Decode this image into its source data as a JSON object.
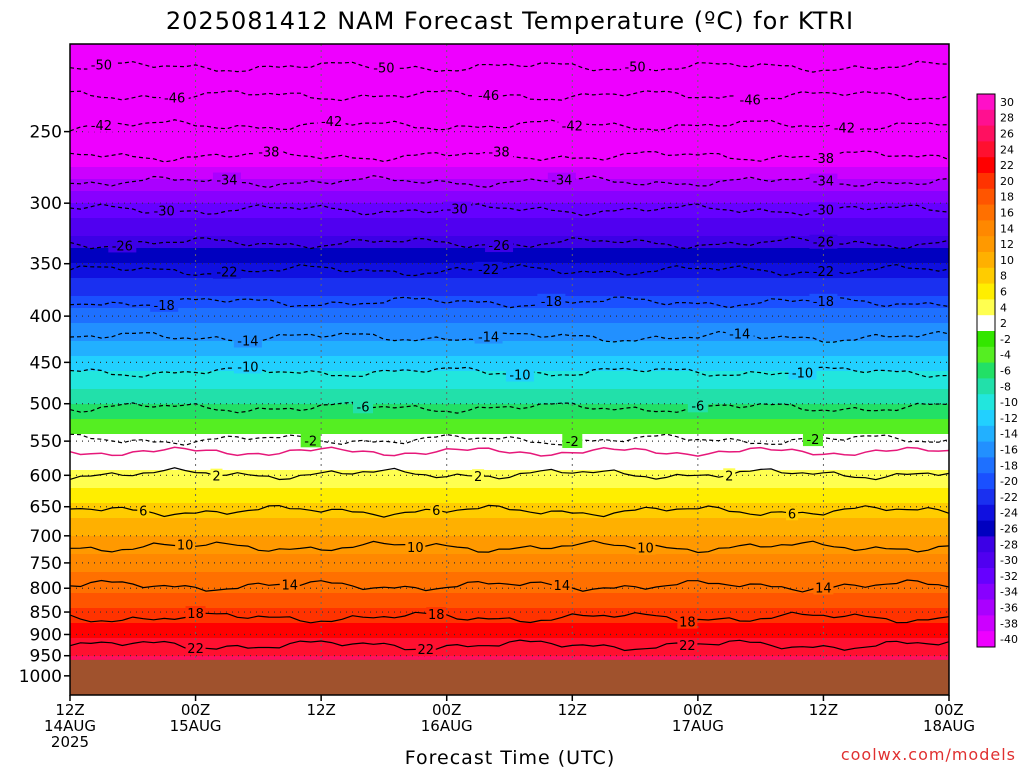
{
  "chart_data": {
    "type": "heatmap",
    "title": "2025081412 NAM Forecast Temperature (ºC) for KTRI",
    "xlabel": "Forecast Time (UTC)",
    "ylabel": "",
    "credit": "coolwx.com/models",
    "y_scale": "log-pressure",
    "y_ticks": [
      250,
      300,
      350,
      400,
      450,
      500,
      550,
      600,
      650,
      700,
      750,
      800,
      850,
      900,
      950,
      1000
    ],
    "ylim": [
      200,
      1050
    ],
    "x_ticks": [
      {
        "hour": 0,
        "l1": "12Z",
        "l2": "14AUG",
        "l3": "2025"
      },
      {
        "hour": 12,
        "l1": "00Z",
        "l2": "15AUG",
        "l3": ""
      },
      {
        "hour": 24,
        "l1": "12Z",
        "l2": "",
        "l3": ""
      },
      {
        "hour": 36,
        "l1": "00Z",
        "l2": "16AUG",
        "l3": ""
      },
      {
        "hour": 48,
        "l1": "12Z",
        "l2": "",
        "l3": ""
      },
      {
        "hour": 60,
        "l1": "00Z",
        "l2": "17AUG",
        "l3": ""
      },
      {
        "hour": 72,
        "l1": "12Z",
        "l2": "",
        "l3": ""
      },
      {
        "hour": 84,
        "l1": "00Z",
        "l2": "18AUG",
        "l3": ""
      }
    ],
    "xlim": [
      0,
      84
    ],
    "surface_pressure": 960,
    "freezing_level_pressure": 565,
    "profile": [
      {
        "p": 200,
        "t": -54
      },
      {
        "p": 250,
        "t": -43
      },
      {
        "p": 300,
        "t": -32
      },
      {
        "p": 350,
        "t": -24
      },
      {
        "p": 400,
        "t": -17
      },
      {
        "p": 450,
        "t": -11
      },
      {
        "p": 500,
        "t": -6
      },
      {
        "p": 550,
        "t": -1
      },
      {
        "p": 600,
        "t": 2.5
      },
      {
        "p": 650,
        "t": 6.5
      },
      {
        "p": 700,
        "t": 10
      },
      {
        "p": 750,
        "t": 13
      },
      {
        "p": 800,
        "t": 15.5
      },
      {
        "p": 850,
        "t": 18.5
      },
      {
        "p": 900,
        "t": 21.5
      },
      {
        "p": 950,
        "t": 24
      }
    ],
    "contours": [
      {
        "t": -50,
        "p": 212,
        "labels": [
          {
            "x": 3,
            "v": "-50"
          },
          {
            "x": 30,
            "v": "-50"
          },
          {
            "x": 54,
            "v": "-50"
          }
        ]
      },
      {
        "t": -46,
        "p": 228,
        "labels": [
          {
            "x": 10,
            "v": "-46"
          },
          {
            "x": 40,
            "v": "-46"
          },
          {
            "x": 65,
            "v": "-46"
          }
        ]
      },
      {
        "t": -42,
        "p": 246,
        "labels": [
          {
            "x": 3,
            "v": "-42"
          },
          {
            "x": 25,
            "v": "-42"
          },
          {
            "x": 48,
            "v": "-42"
          },
          {
            "x": 74,
            "v": "-42"
          }
        ]
      },
      {
        "t": -38,
        "p": 266,
        "labels": [
          {
            "x": 19,
            "v": "-38"
          },
          {
            "x": 41,
            "v": "-38"
          },
          {
            "x": 72,
            "v": "-38"
          }
        ]
      },
      {
        "t": -34,
        "p": 284,
        "labels": [
          {
            "x": 15,
            "v": "-34"
          },
          {
            "x": 47,
            "v": "-34"
          },
          {
            "x": 72,
            "v": "-34"
          }
        ]
      },
      {
        "t": -30,
        "p": 305,
        "labels": [
          {
            "x": 9,
            "v": "-30"
          },
          {
            "x": 37,
            "v": "-30"
          },
          {
            "x": 72,
            "v": "-30"
          }
        ]
      },
      {
        "t": -26,
        "p": 332,
        "labels": [
          {
            "x": 5,
            "v": "-26"
          },
          {
            "x": 41,
            "v": "-26"
          },
          {
            "x": 72,
            "v": "-26"
          }
        ]
      },
      {
        "t": -22,
        "p": 356,
        "labels": [
          {
            "x": 15,
            "v": "-22"
          },
          {
            "x": 40,
            "v": "-22"
          },
          {
            "x": 72,
            "v": "-22"
          }
        ]
      },
      {
        "t": -18,
        "p": 386,
        "labels": [
          {
            "x": 9,
            "v": "-18"
          },
          {
            "x": 46,
            "v": "-18"
          },
          {
            "x": 72,
            "v": "-18"
          }
        ]
      },
      {
        "t": -14,
        "p": 422,
        "labels": [
          {
            "x": 17,
            "v": "-14"
          },
          {
            "x": 40,
            "v": "-14"
          },
          {
            "x": 64,
            "v": "-14"
          }
        ]
      },
      {
        "t": -10,
        "p": 461,
        "labels": [
          {
            "x": 17,
            "v": "-10"
          },
          {
            "x": 43,
            "v": "-10"
          },
          {
            "x": 70,
            "v": "-10"
          }
        ]
      },
      {
        "t": -6,
        "p": 505,
        "labels": [
          {
            "x": 28,
            "v": "-6"
          },
          {
            "x": 60,
            "v": "-6"
          }
        ]
      },
      {
        "t": -2,
        "p": 548,
        "labels": [
          {
            "x": 23,
            "v": "-2"
          },
          {
            "x": 48,
            "v": "-2"
          },
          {
            "x": 71,
            "v": "-2"
          }
        ]
      },
      {
        "t": 2,
        "p": 598,
        "labels": [
          {
            "x": 14,
            "v": "2"
          },
          {
            "x": 39,
            "v": "2"
          },
          {
            "x": 63,
            "v": "2"
          }
        ]
      },
      {
        "t": 6,
        "p": 657,
        "labels": [
          {
            "x": 7,
            "v": "6"
          },
          {
            "x": 35,
            "v": "6"
          },
          {
            "x": 69,
            "v": "6"
          }
        ]
      },
      {
        "t": 10,
        "p": 720,
        "labels": [
          {
            "x": 11,
            "v": "10"
          },
          {
            "x": 33,
            "v": "10"
          },
          {
            "x": 55,
            "v": "10"
          }
        ]
      },
      {
        "t": 14,
        "p": 795,
        "labels": [
          {
            "x": 21,
            "v": "14"
          },
          {
            "x": 47,
            "v": "14"
          },
          {
            "x": 72,
            "v": "14"
          }
        ]
      },
      {
        "t": 18,
        "p": 862,
        "labels": [
          {
            "x": 12,
            "v": "18"
          },
          {
            "x": 35,
            "v": "18"
          },
          {
            "x": 59,
            "v": "18"
          }
        ]
      },
      {
        "t": 22,
        "p": 925,
        "labels": [
          {
            "x": 12,
            "v": "22"
          },
          {
            "x": 34,
            "v": "22"
          },
          {
            "x": 59,
            "v": "22"
          }
        ]
      }
    ],
    "colorbar": {
      "labels": [
        "30",
        "28",
        "26",
        "24",
        "22",
        "20",
        "18",
        "16",
        "14",
        "12",
        "10",
        "8",
        "6",
        "4",
        "2",
        "-2",
        "-4",
        "-6",
        "-8",
        "-10",
        "-12",
        "-14",
        "-16",
        "-18",
        "-20",
        "-22",
        "-24",
        "-26",
        "-28",
        "-30",
        "-32",
        "-34",
        "-36",
        "-38",
        "-40"
      ],
      "colors": [
        "#ff10c8",
        "#ff1090",
        "#ff1060",
        "#ff1030",
        "#ff0000",
        "#ff3300",
        "#ff5500",
        "#ff7000",
        "#ff8800",
        "#ff9900",
        "#ffb000",
        "#ffcc00",
        "#ffee00",
        "#ffff50",
        "#ffffff",
        "#33e600",
        "#55ee22",
        "#22e066",
        "#22e0aa",
        "#22e6dd",
        "#22d0ff",
        "#22b0ff",
        "#2290ff",
        "#1e70ff",
        "#1a50ff",
        "#1a30f0",
        "#1010e0",
        "#0000c0",
        "#3c00e6",
        "#5000f0",
        "#6600ff",
        "#8800ff",
        "#aa00ff",
        "#cc00ff",
        "#ee00ff"
      ]
    }
  }
}
